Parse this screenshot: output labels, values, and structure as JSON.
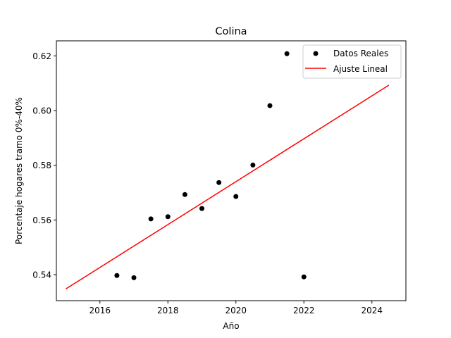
{
  "chart_data": {
    "type": "scatter",
    "title": "Colina",
    "xlabel": "Año",
    "ylabel": "Porcentaje hogares tramo 0%-40%",
    "xlim": [
      2014.72,
      2025.0
    ],
    "ylim": [
      0.5305,
      0.6255
    ],
    "xticks": [
      2016,
      2018,
      2020,
      2022,
      2024
    ],
    "yticks": [
      0.54,
      0.56,
      0.58,
      0.6,
      0.62
    ],
    "ytick_labels": [
      "0.54",
      "0.56",
      "0.58",
      "0.60",
      "0.62"
    ],
    "grid": false,
    "legend_position": "top-right",
    "series": [
      {
        "name": "Datos Reales",
        "kind": "scatter",
        "color": "#000000",
        "x": [
          2016.5,
          2017.0,
          2017.5,
          2018.0,
          2018.5,
          2019.0,
          2019.5,
          2020.0,
          2020.5,
          2021.0,
          2021.5,
          2022.0
        ],
        "y": [
          0.5397,
          0.5389,
          0.5604,
          0.5612,
          0.5693,
          0.5642,
          0.5737,
          0.5686,
          0.5801,
          0.6018,
          0.6208,
          0.5392
        ]
      },
      {
        "name": "Ajuste Lineal",
        "kind": "line",
        "color": "#ff0000",
        "x": [
          2015.0,
          2024.5
        ],
        "y": [
          0.5348,
          0.6093
        ]
      }
    ]
  }
}
